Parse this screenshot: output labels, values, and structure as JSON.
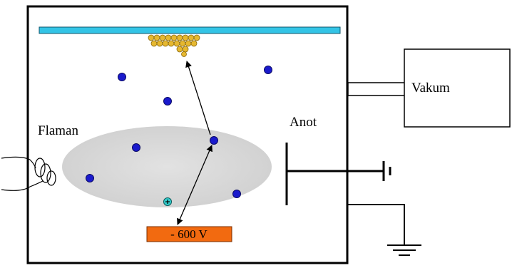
{
  "labels": {
    "vacuum": "Vakum",
    "filament": "Flaman",
    "anode": "Anot",
    "target_voltage": "- 600 V"
  },
  "colors": {
    "substrate": "#33c4e6",
    "chamber_outline": "#000000",
    "plasma": "#d9d9d9",
    "ion": "#1a1acc",
    "deposited_atoms": "#e6b830",
    "target": "#f26a10",
    "positive_ion": "#33cccc"
  },
  "icons": {
    "filament": "filament-coil-icon",
    "ground": "ground-symbol-icon",
    "anode_bias": "battery-symbol-icon",
    "positive_ion": "positive-ion-icon"
  }
}
